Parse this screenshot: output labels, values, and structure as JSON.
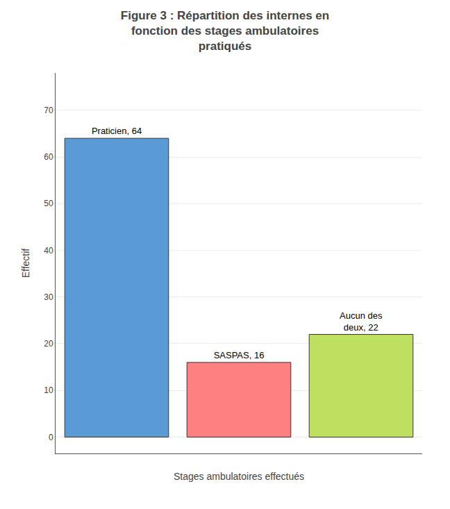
{
  "chart_data": {
    "type": "bar",
    "title": "Figure 3 : Répartition des internes en\nfonction des stages ambulatoires\npratiqués",
    "categories": [
      null,
      null,
      null
    ],
    "values": [
      64,
      16,
      22
    ],
    "value_labels": [
      "Praticien, 64",
      "SASPAS, 16",
      "Aucun des\ndeux, 22"
    ],
    "data_labels": true,
    "colors": [
      "#5B9BD5",
      "#FF8080",
      "#BFDF60"
    ],
    "xlabel": "Stages ambulatoires effectués",
    "ylabel": "Effectif",
    "ylim": [
      -3.5,
      78
    ],
    "yticks": [
      0,
      10,
      20,
      30,
      40,
      50,
      60,
      70
    ],
    "grid": true,
    "tick_labels": "y"
  }
}
